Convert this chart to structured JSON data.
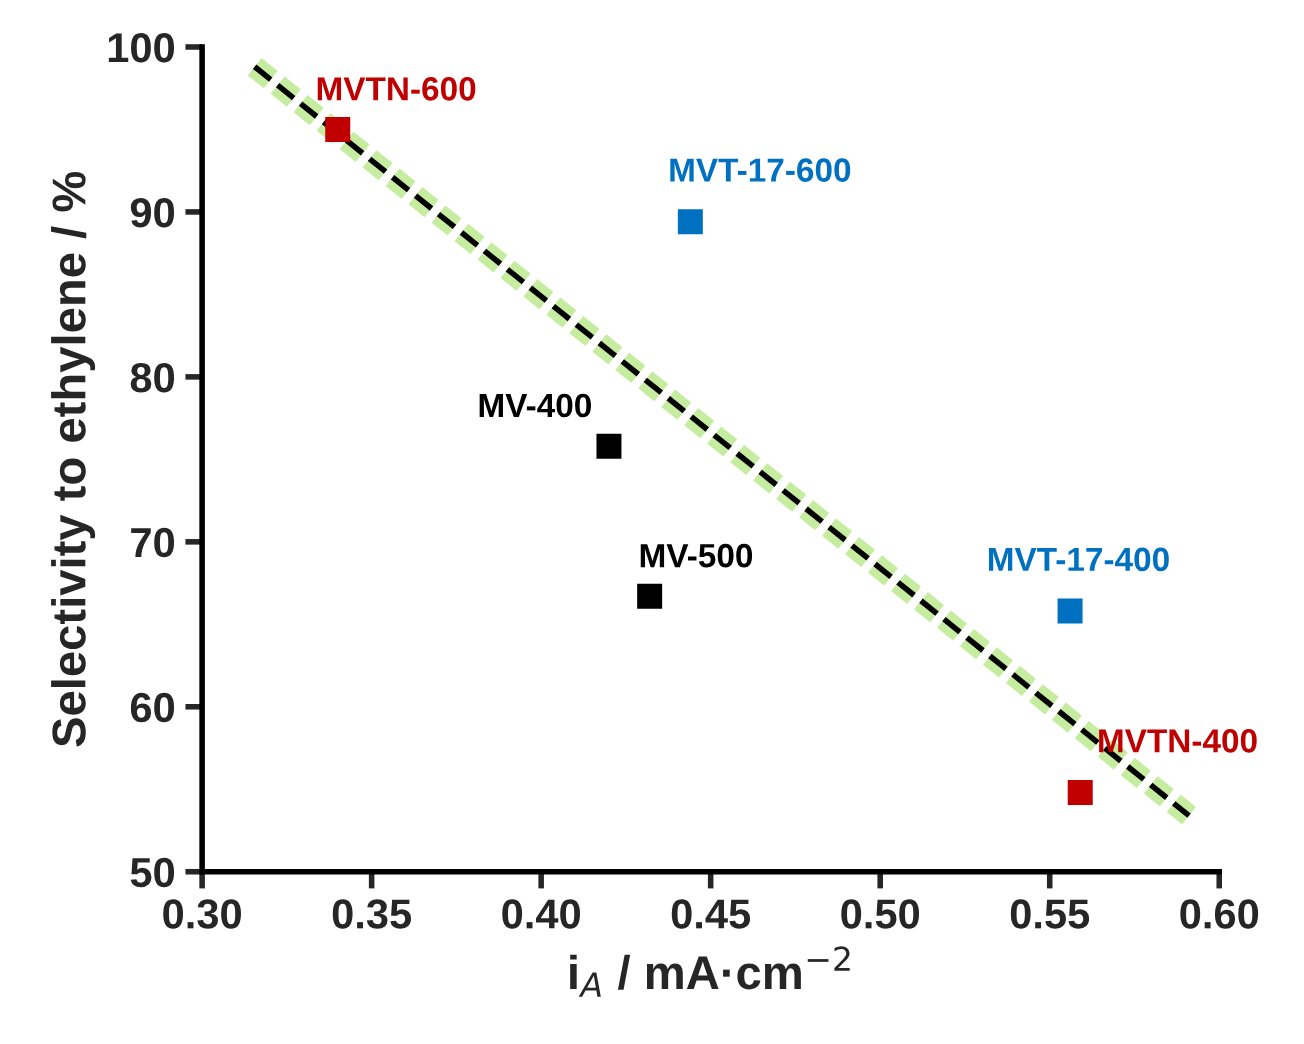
{
  "chart_data": {
    "type": "scatter",
    "xlabel": "i$_{A}$ / mA·cm$^{−2}$",
    "ylabel": "Selectivity to ethylene / %",
    "xlim": [
      0.3,
      0.6
    ],
    "ylim": [
      50,
      100
    ],
    "xticks": [
      {
        "value": 0.3,
        "label": "0.30"
      },
      {
        "value": 0.35,
        "label": "0.35"
      },
      {
        "value": 0.4,
        "label": "0.40"
      },
      {
        "value": 0.45,
        "label": "0.45"
      },
      {
        "value": 0.5,
        "label": "0.50"
      },
      {
        "value": 0.55,
        "label": "0.55"
      },
      {
        "value": 0.6,
        "label": "0.60"
      }
    ],
    "yticks": [
      50,
      60,
      70,
      80,
      90,
      100
    ],
    "marker": "square",
    "grid": false,
    "legend": false,
    "series": [
      {
        "name": "MVTN-600",
        "color": "#c00000",
        "x": [
          0.34
        ],
        "values": [
          95
        ]
      },
      {
        "name": "MVT-17-600",
        "color": "#0070c0",
        "x": [
          0.444
        ],
        "values": [
          89.4
        ]
      },
      {
        "name": "MV-400",
        "color": "#000000",
        "x": [
          0.42
        ],
        "values": [
          75.8
        ]
      },
      {
        "name": "MV-500",
        "color": "#000000",
        "x": [
          0.432
        ],
        "values": [
          66.7
        ]
      },
      {
        "name": "MVT-17-400",
        "color": "#0070c0",
        "x": [
          0.556
        ],
        "values": [
          65.8
        ]
      },
      {
        "name": "MVTN-400",
        "color": "#c00000",
        "x": [
          0.559
        ],
        "values": [
          54.8
        ]
      },
      {
        "type": "line",
        "color": "#000000",
        "line_style": "dashed",
        "marker": "none",
        "x": [
          0.3155,
          0.5911
        ],
        "values": [
          98.8,
          53.4
        ]
      }
    ]
  }
}
